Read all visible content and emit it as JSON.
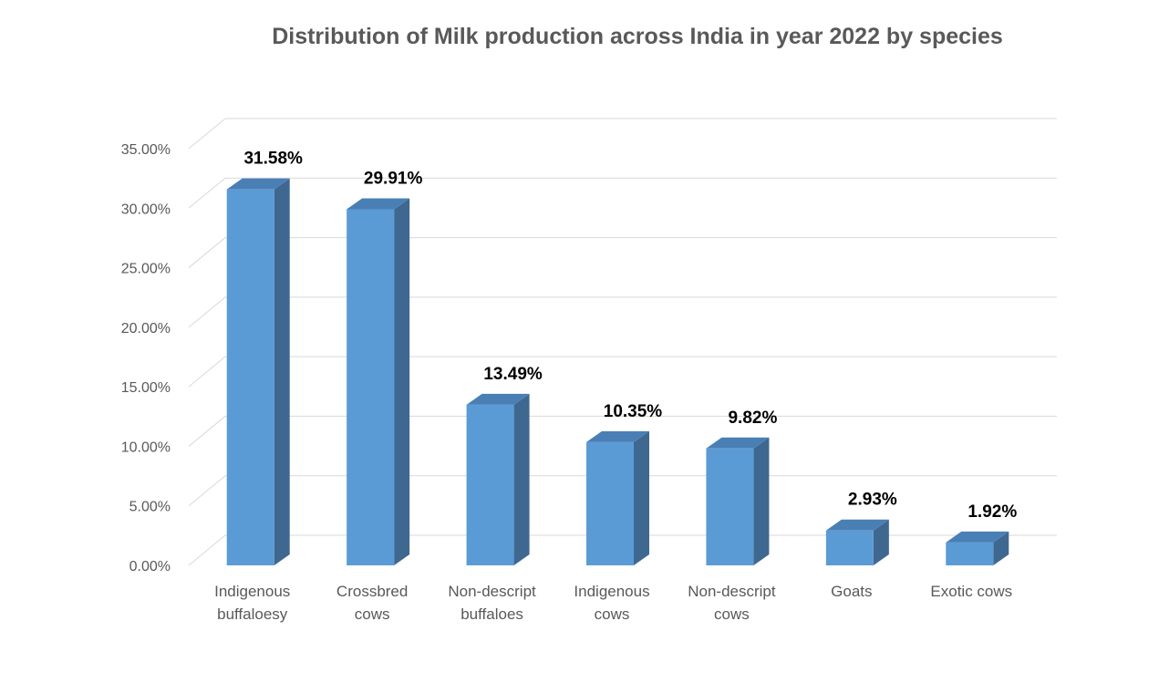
{
  "chart_data": {
    "type": "bar",
    "title": "Distribution of Milk production across India in year 2022 by species",
    "categories": [
      [
        "Indigenous",
        "buffaloesy"
      ],
      [
        "Crossbred",
        "cows"
      ],
      [
        "Non-descript",
        "buffaloes"
      ],
      [
        "Indigenous",
        "cows"
      ],
      [
        "Non-descript",
        "cows"
      ],
      [
        "Goats"
      ],
      [
        "Exotic cows"
      ]
    ],
    "values": [
      31.58,
      29.91,
      13.49,
      10.35,
      9.82,
      2.93,
      1.92
    ],
    "data_labels": [
      "31.58%",
      "29.91%",
      "13.49%",
      "10.35%",
      "9.82%",
      "2.93%",
      "1.92%"
    ],
    "yticks": [
      0,
      5,
      10,
      15,
      20,
      25,
      30,
      35
    ],
    "ytick_labels": [
      "0.00%",
      "5.00%",
      "10.00%",
      "15.00%",
      "20.00%",
      "25.00%",
      "30.00%",
      "35.00%"
    ],
    "ylim": [
      0,
      35
    ],
    "grid": true,
    "style": "3d-column",
    "colors": {
      "front": "#5b9bd5",
      "side": "#3f6890",
      "top": "#4a7fb5"
    }
  }
}
